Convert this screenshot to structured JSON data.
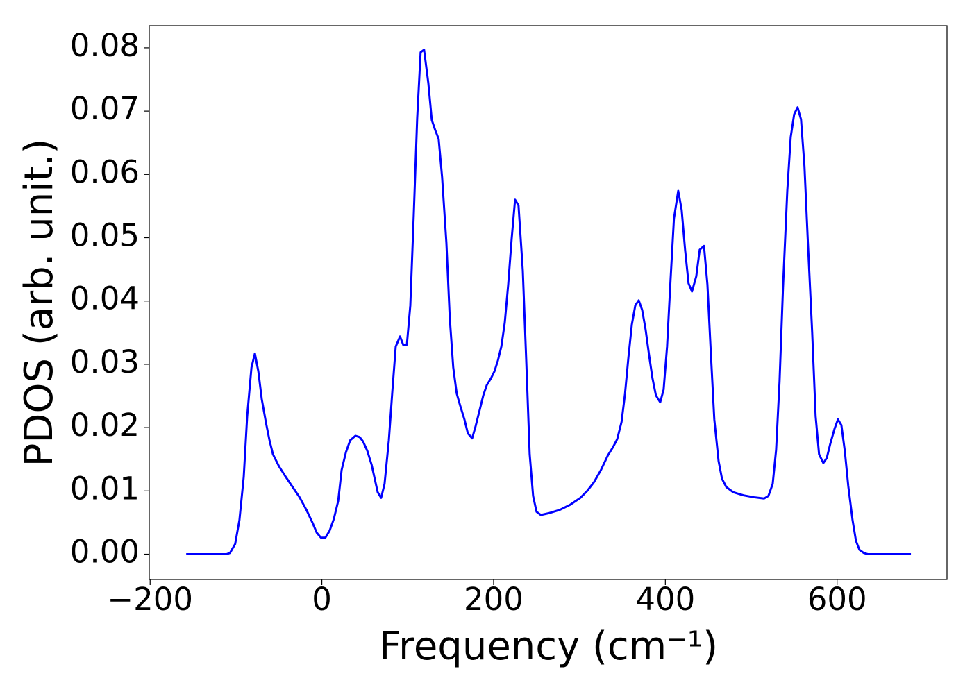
{
  "chart_data": {
    "type": "line",
    "xlabel": "Frequency (cm⁻¹)",
    "ylabel": "PDOS (arb. unit.)",
    "xlim": [
      -201,
      728
    ],
    "ylim": [
      -0.004,
      0.0835
    ],
    "xticks": [
      {
        "value": -200,
        "label": "−200"
      },
      0,
      200,
      400,
      600
    ],
    "yticks": [
      {
        "value": 0,
        "label": "0.00"
      },
      {
        "value": 0.01,
        "label": "0.01"
      },
      {
        "value": 0.02,
        "label": "0.02"
      },
      {
        "value": 0.03,
        "label": "0.03"
      },
      {
        "value": 0.04,
        "label": "0.04"
      },
      {
        "value": 0.05,
        "label": "0.05"
      },
      {
        "value": 0.06,
        "label": "0.06"
      },
      {
        "value": 0.07,
        "label": "0.07"
      },
      {
        "value": 0.08,
        "label": "0.08"
      }
    ],
    "grid": false,
    "x": [
      -158,
      -111,
      -107,
      -101,
      -96,
      -91,
      -87,
      -82,
      -78,
      -74,
      -70,
      -65,
      -61,
      -57,
      -50,
      -42,
      -34,
      -26,
      -18,
      -11,
      -6,
      -1,
      4,
      9,
      14,
      19,
      23,
      28,
      33,
      39,
      44,
      48,
      53,
      58,
      65,
      69,
      73,
      78,
      82,
      86,
      91,
      95,
      99,
      103,
      107,
      111,
      115,
      119,
      124,
      128,
      132,
      136,
      140,
      145,
      149,
      153,
      157,
      161,
      166,
      170,
      175,
      179,
      184,
      188,
      192,
      197,
      201,
      205,
      209,
      213,
      217,
      221,
      225,
      229,
      234,
      238,
      242,
      246,
      250,
      255,
      265,
      277,
      289,
      301,
      309,
      317,
      325,
      333,
      339,
      344,
      349,
      353,
      357,
      361,
      365,
      369,
      373,
      377,
      381,
      385,
      389,
      394,
      398,
      402,
      406,
      410,
      415,
      419,
      423,
      427,
      431,
      436,
      440,
      445,
      449,
      453,
      457,
      462,
      466,
      471,
      479,
      491,
      503,
      515,
      520,
      525,
      529,
      533,
      537,
      542,
      546,
      550,
      554,
      558,
      562,
      566,
      571,
      575,
      579,
      584,
      588,
      592,
      597,
      601,
      605,
      609,
      613,
      618,
      622,
      626,
      631,
      636,
      686
    ],
    "series": [
      {
        "color": "#0000ff",
        "values": [
          0,
          0,
          0.0002,
          0.0016,
          0.0054,
          0.0122,
          0.0218,
          0.0295,
          0.0317,
          0.0289,
          0.0245,
          0.0207,
          0.018,
          0.0158,
          0.0139,
          0.0122,
          0.0106,
          0.009,
          0.007,
          0.005,
          0.0034,
          0.0026,
          0.0026,
          0.0037,
          0.0056,
          0.0084,
          0.0133,
          0.0161,
          0.018,
          0.0187,
          0.0185,
          0.0178,
          0.0163,
          0.0141,
          0.0098,
          0.0089,
          0.0111,
          0.018,
          0.0256,
          0.0328,
          0.0344,
          0.033,
          0.0331,
          0.0393,
          0.0536,
          0.0689,
          0.0793,
          0.0797,
          0.0744,
          0.0686,
          0.067,
          0.0656,
          0.0596,
          0.0492,
          0.0372,
          0.0295,
          0.0254,
          0.0235,
          0.0213,
          0.0191,
          0.0183,
          0.0202,
          0.0229,
          0.0251,
          0.0267,
          0.0278,
          0.0289,
          0.0306,
          0.0328,
          0.0366,
          0.0426,
          0.0498,
          0.056,
          0.0551,
          0.0448,
          0.0306,
          0.0158,
          0.0092,
          0.0067,
          0.0062,
          0.0065,
          0.007,
          0.0078,
          0.0089,
          0.01,
          0.0114,
          0.0133,
          0.0156,
          0.0169,
          0.0182,
          0.0209,
          0.0253,
          0.0311,
          0.0363,
          0.0393,
          0.0401,
          0.0386,
          0.0355,
          0.0315,
          0.0278,
          0.0251,
          0.024,
          0.026,
          0.0328,
          0.0432,
          0.053,
          0.0574,
          0.0544,
          0.0481,
          0.0428,
          0.0415,
          0.0439,
          0.0481,
          0.0487,
          0.0426,
          0.0317,
          0.0213,
          0.0147,
          0.0119,
          0.0106,
          0.0098,
          0.0093,
          0.009,
          0.0088,
          0.0092,
          0.0111,
          0.0165,
          0.0273,
          0.0421,
          0.0574,
          0.0659,
          0.0695,
          0.0706,
          0.0687,
          0.0613,
          0.0492,
          0.035,
          0.0218,
          0.0158,
          0.0144,
          0.0152,
          0.0174,
          0.0198,
          0.0213,
          0.0204,
          0.0163,
          0.0108,
          0.0054,
          0.0021,
          0.0007,
          0.0002,
          0,
          0
        ]
      }
    ]
  }
}
